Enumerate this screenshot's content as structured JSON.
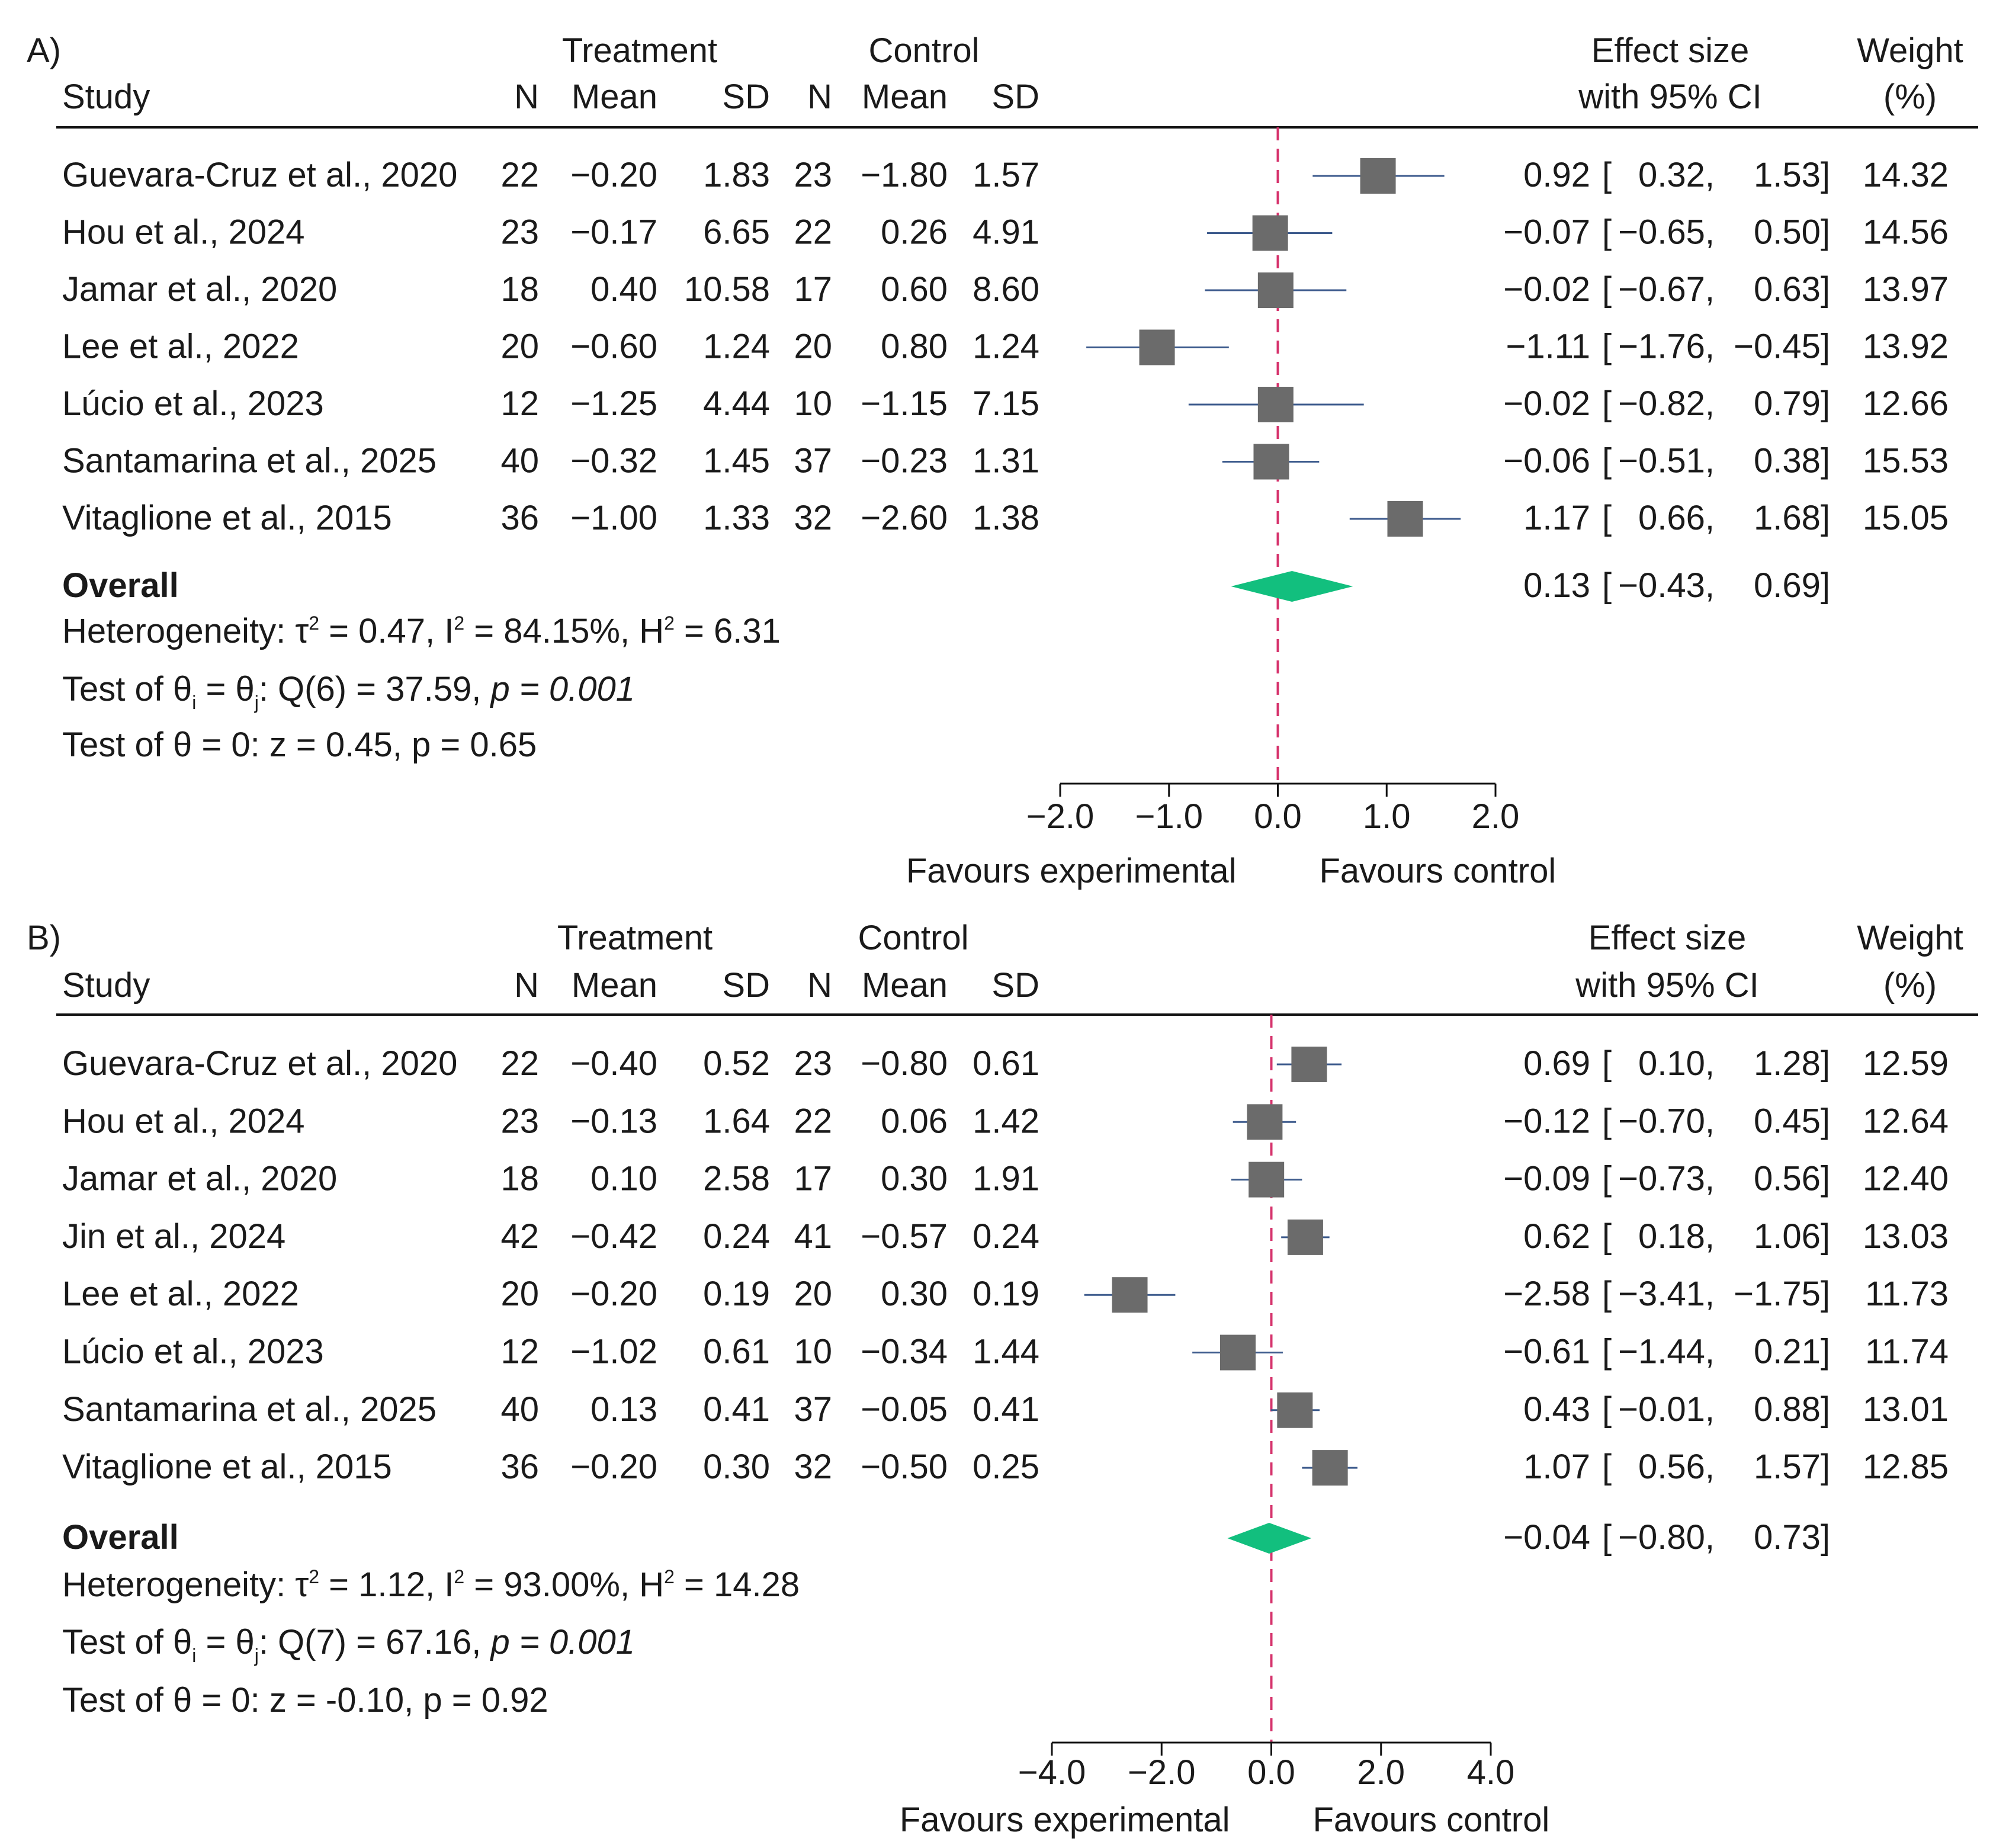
{
  "chart_data": [
    {
      "panel_label": "A)",
      "type": "forest",
      "headers": {
        "study": "Study",
        "treatment_group": "Treatment",
        "control_group": "Control",
        "n": "N",
        "mean": "Mean",
        "sd": "SD",
        "effect_line1": "Effect size",
        "effect_line2": "with 95% CI",
        "weight_line1": "Weight",
        "weight_line2": "(%)"
      },
      "studies": [
        {
          "name": "Guevara-Cruz et al., 2020",
          "t_n": "22",
          "t_mean": "−0.20",
          "t_sd": "1.83",
          "c_n": "23",
          "c_mean": "−1.80",
          "c_sd": "1.57",
          "es": 0.92,
          "lo": 0.32,
          "hi": 1.53,
          "es_text": "0.92",
          "lo_text": "0.32,",
          "hi_text": "1.53]",
          "weight": "14.32"
        },
        {
          "name": "Hou et al., 2024",
          "t_n": "23",
          "t_mean": "−0.17",
          "t_sd": "6.65",
          "c_n": "22",
          "c_mean": "0.26",
          "c_sd": "4.91",
          "es": -0.07,
          "lo": -0.65,
          "hi": 0.5,
          "es_text": "−0.07",
          "lo_text": "−0.65,",
          "hi_text": "0.50]",
          "weight": "14.56"
        },
        {
          "name": "Jamar et al., 2020",
          "t_n": "18",
          "t_mean": "0.40",
          "t_sd": "10.58",
          "c_n": "17",
          "c_mean": "0.60",
          "c_sd": "8.60",
          "es": -0.02,
          "lo": -0.67,
          "hi": 0.63,
          "es_text": "−0.02",
          "lo_text": "−0.67,",
          "hi_text": "0.63]",
          "weight": "13.97"
        },
        {
          "name": "Lee et al., 2022",
          "t_n": "20",
          "t_mean": "−0.60",
          "t_sd": "1.24",
          "c_n": "20",
          "c_mean": "0.80",
          "c_sd": "1.24",
          "es": -1.11,
          "lo": -1.76,
          "hi": -0.45,
          "es_text": "−1.11",
          "lo_text": "−1.76,",
          "hi_text": "−0.45]",
          "weight": "13.92"
        },
        {
          "name": "Lúcio et al., 2023",
          "t_n": "12",
          "t_mean": "−1.25",
          "t_sd": "4.44",
          "c_n": "10",
          "c_mean": "−1.15",
          "c_sd": "7.15",
          "es": -0.02,
          "lo": -0.82,
          "hi": 0.79,
          "es_text": "−0.02",
          "lo_text": "−0.82,",
          "hi_text": "0.79]",
          "weight": "12.66"
        },
        {
          "name": "Santamarina et al., 2025",
          "t_n": "40",
          "t_mean": "−0.32",
          "t_sd": "1.45",
          "c_n": "37",
          "c_mean": "−0.23",
          "c_sd": "1.31",
          "es": -0.06,
          "lo": -0.51,
          "hi": 0.38,
          "es_text": "−0.06",
          "lo_text": "−0.51,",
          "hi_text": "0.38]",
          "weight": "15.53"
        },
        {
          "name": "Vitaglione et al., 2015",
          "t_n": "36",
          "t_mean": "−1.00",
          "t_sd": "1.33",
          "c_n": "32",
          "c_mean": "−2.60",
          "c_sd": "1.38",
          "es": 1.17,
          "lo": 0.66,
          "hi": 1.68,
          "es_text": "1.17",
          "lo_text": "0.66,",
          "hi_text": "1.68]",
          "weight": "15.05"
        }
      ],
      "overall": {
        "label": "Overall",
        "es": 0.13,
        "lo": -0.43,
        "hi": 0.69,
        "es_text": "0.13",
        "lo_text": "−0.43,",
        "hi_text": "0.69]"
      },
      "heterogeneity": {
        "prefix": "Heterogeneity: τ",
        "after_tau": " = 0.47, I",
        "after_i": " = 84.15%, H",
        "after_h": " = 6.31"
      },
      "test_q": {
        "prefix": "Test of θ",
        "sub_i": "i",
        "mid": " = θ",
        "sub_j": "j",
        "stat": ": Q(6) = 37.59, ",
        "p": "p = 0.001"
      },
      "test_z": "Test of θ = 0: z = 0.45, p = 0.65",
      "axis": {
        "min": -2,
        "max": 2,
        "ticks": [
          -2,
          -1,
          0,
          1,
          2
        ],
        "tick_labels": [
          "−2.0",
          "−1.0",
          "0.0",
          "1.0",
          "2.0"
        ]
      },
      "favours_left": "Favours experimental",
      "favours_right": "Favours control"
    },
    {
      "panel_label": "B)",
      "type": "forest",
      "headers": {
        "study": "Study",
        "treatment_group": "Treatment",
        "control_group": "Control",
        "n": "N",
        "mean": "Mean",
        "sd": "SD",
        "effect_line1": "Effect size",
        "effect_line2": "with 95% CI",
        "weight_line1": "Weight",
        "weight_line2": "(%)"
      },
      "studies": [
        {
          "name": "Guevara-Cruz et al., 2020",
          "t_n": "22",
          "t_mean": "−0.40",
          "t_sd": "0.52",
          "c_n": "23",
          "c_mean": "−0.80",
          "c_sd": "0.61",
          "es": 0.69,
          "lo": 0.1,
          "hi": 1.28,
          "es_text": "0.69",
          "lo_text": "0.10,",
          "hi_text": "1.28]",
          "weight": "12.59"
        },
        {
          "name": "Hou et al., 2024",
          "t_n": "23",
          "t_mean": "−0.13",
          "t_sd": "1.64",
          "c_n": "22",
          "c_mean": "0.06",
          "c_sd": "1.42",
          "es": -0.12,
          "lo": -0.7,
          "hi": 0.45,
          "es_text": "−0.12",
          "lo_text": "−0.70,",
          "hi_text": "0.45]",
          "weight": "12.64"
        },
        {
          "name": "Jamar et al., 2020",
          "t_n": "18",
          "t_mean": "0.10",
          "t_sd": "2.58",
          "c_n": "17",
          "c_mean": "0.30",
          "c_sd": "1.91",
          "es": -0.09,
          "lo": -0.73,
          "hi": 0.56,
          "es_text": "−0.09",
          "lo_text": "−0.73,",
          "hi_text": "0.56]",
          "weight": "12.40"
        },
        {
          "name": "Jin et al., 2024",
          "t_n": "42",
          "t_mean": "−0.42",
          "t_sd": "0.24",
          "c_n": "41",
          "c_mean": "−0.57",
          "c_sd": "0.24",
          "es": 0.62,
          "lo": 0.18,
          "hi": 1.06,
          "es_text": "0.62",
          "lo_text": "0.18,",
          "hi_text": "1.06]",
          "weight": "13.03"
        },
        {
          "name": "Lee et al., 2022",
          "t_n": "20",
          "t_mean": "−0.20",
          "t_sd": "0.19",
          "c_n": "20",
          "c_mean": "0.30",
          "c_sd": "0.19",
          "es": -2.58,
          "lo": -3.41,
          "hi": -1.75,
          "es_text": "−2.58",
          "lo_text": "−3.41,",
          "hi_text": "−1.75]",
          "weight": "11.73"
        },
        {
          "name": "Lúcio et al., 2023",
          "t_n": "12",
          "t_mean": "−1.02",
          "t_sd": "0.61",
          "c_n": "10",
          "c_mean": "−0.34",
          "c_sd": "1.44",
          "es": -0.61,
          "lo": -1.44,
          "hi": 0.21,
          "es_text": "−0.61",
          "lo_text": "−1.44,",
          "hi_text": "0.21]",
          "weight": "11.74"
        },
        {
          "name": "Santamarina et al., 2025",
          "t_n": "40",
          "t_mean": "0.13",
          "t_sd": "0.41",
          "c_n": "37",
          "c_mean": "−0.05",
          "c_sd": "0.41",
          "es": 0.43,
          "lo": -0.01,
          "hi": 0.88,
          "es_text": "0.43",
          "lo_text": "−0.01,",
          "hi_text": "0.88]",
          "weight": "13.01"
        },
        {
          "name": "Vitaglione et al., 2015",
          "t_n": "36",
          "t_mean": "−0.20",
          "t_sd": "0.30",
          "c_n": "32",
          "c_mean": "−0.50",
          "c_sd": "0.25",
          "es": 1.07,
          "lo": 0.56,
          "hi": 1.57,
          "es_text": "1.07",
          "lo_text": "0.56,",
          "hi_text": "1.57]",
          "weight": "12.85"
        }
      ],
      "overall": {
        "label": "Overall",
        "es": -0.04,
        "lo": -0.8,
        "hi": 0.73,
        "es_text": "−0.04",
        "lo_text": "−0.80,",
        "hi_text": "0.73]"
      },
      "heterogeneity": {
        "prefix": "Heterogeneity: τ",
        "after_tau": " = 1.12, I",
        "after_i": " = 93.00%, H",
        "after_h": " = 14.28"
      },
      "test_q": {
        "prefix": "Test of θ",
        "sub_i": "i",
        "mid": " = θ",
        "sub_j": "j",
        "stat": ": Q(7) = 67.16, ",
        "p": "p = 0.001"
      },
      "test_z": "Test of θ = 0: z = -0.10, p = 0.92",
      "axis": {
        "min": -4,
        "max": 4,
        "ticks": [
          -4,
          -2,
          0,
          2,
          4
        ],
        "tick_labels": [
          "−4.0",
          "−2.0",
          "0.0",
          "2.0",
          "4.0"
        ]
      },
      "favours_left": "Favours experimental",
      "favours_right": "Favours control"
    }
  ],
  "style": {
    "marker_color": "#6b6b6b",
    "ci_line_color": "#3c5a8c",
    "diamond_color": "#12bf7e",
    "null_line_color": "#d6336c",
    "text_color": "#1a1a1a"
  }
}
